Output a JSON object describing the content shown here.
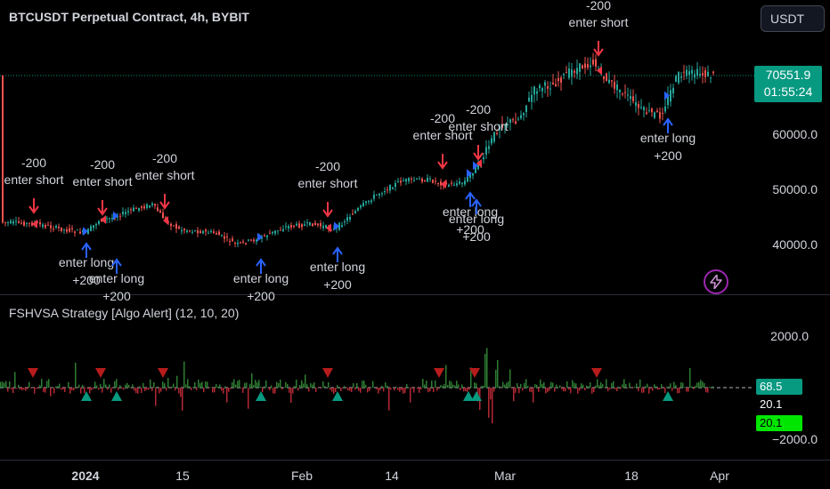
{
  "header": {
    "title": "BTCUSDT Perpetual Contract, 4h, BYBIT",
    "currency": "USDT"
  },
  "last_price": {
    "value": "70551.9",
    "countdown": "01:55:24"
  },
  "price_axis": {
    "labels": [
      "60000.0",
      "50000.0",
      "40000.0"
    ]
  },
  "indicator": {
    "title": "FSHVSA Strategy [Algo Alert] (12, 10, 20)",
    "axis_labels": [
      "2000.0",
      "−2000.0"
    ],
    "tags": [
      {
        "value": "68.5",
        "bg": "#089981",
        "fg": "#ffffff"
      },
      {
        "value": "20.1",
        "bg": "#000000",
        "fg": "#ffffff"
      },
      {
        "value": "20.1",
        "bg": "#00e600",
        "fg": "#000000"
      }
    ]
  },
  "time_axis": {
    "labels": [
      "2024",
      "15",
      "Feb",
      "14",
      "Mar",
      "18",
      "Apr"
    ]
  },
  "signals": {
    "short": [
      {
        "label1": "-200",
        "label2": "enter short"
      },
      {
        "label1": "-200",
        "label2": "enter short"
      },
      {
        "label1": "-200",
        "label2": "enter short"
      },
      {
        "label1": "-200",
        "label2": "enter short"
      },
      {
        "label1": "-200",
        "label2": "enter short"
      },
      {
        "label1": "-200",
        "label2": "enter short"
      },
      {
        "label1": "-200",
        "label2": "enter short"
      }
    ],
    "long": [
      {
        "label1": "enter long",
        "label2": "+200"
      },
      {
        "label1": "enter long",
        "label2": "+200"
      },
      {
        "label1": "enter long",
        "label2": "+200"
      },
      {
        "label1": "enter long",
        "label2": "+200"
      },
      {
        "label1": "enter long",
        "label2": "+200"
      },
      {
        "label1": "enter long",
        "label2": "+200"
      },
      {
        "label1": "enter long",
        "label2": "+200"
      }
    ]
  },
  "colors": {
    "up": "#26a69a",
    "down": "#ef5350",
    "short_arrow": "#f23645",
    "long_arrow": "#2962ff",
    "short_triangle": "#b71c1c",
    "long_triangle": "#089981"
  },
  "icons": {
    "lightning": "lightning-icon"
  }
}
